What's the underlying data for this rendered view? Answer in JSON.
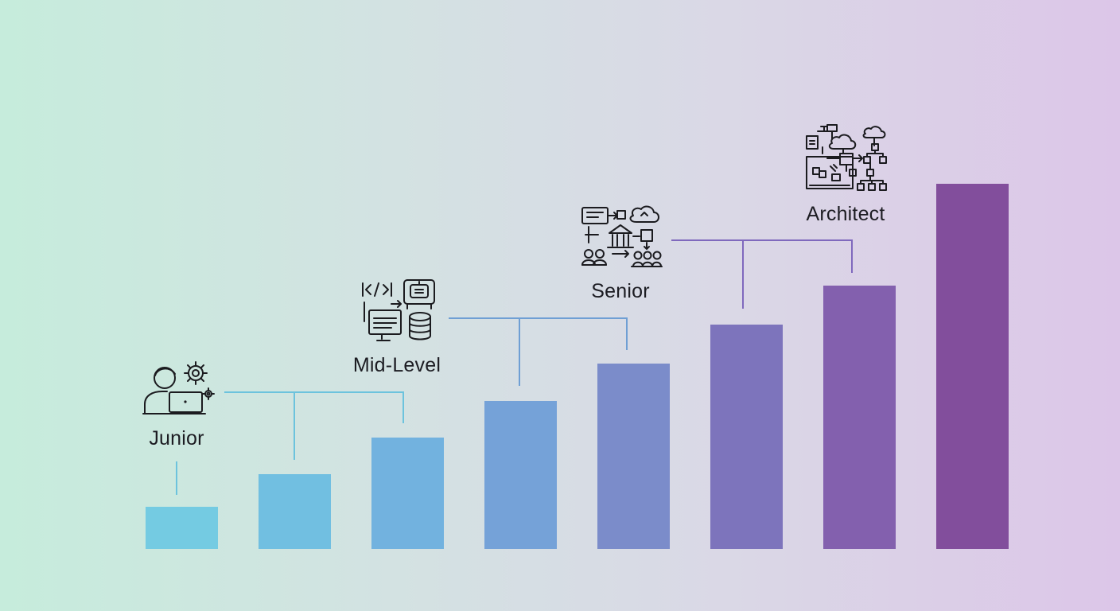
{
  "diagram": {
    "bar_levels": [
      1,
      2,
      3,
      4,
      5,
      6,
      7,
      8
    ],
    "bar_colors": [
      "#74cbe2",
      "#71bfe1",
      "#72b2df",
      "#75a2d8",
      "#7b8cca",
      "#7d74bc",
      "#8360ae",
      "#824e9c"
    ],
    "connector_colors": {
      "junior": "#6cc3dd",
      "mid": "#6f9fd4",
      "senior": "#7f69bd"
    },
    "stages": [
      {
        "id": "junior",
        "label": "Junior",
        "icon": "developer-laptop-gear-icon"
      },
      {
        "id": "mid",
        "label": "Mid-Level",
        "icon": "code-database-icon"
      },
      {
        "id": "senior",
        "label": "Senior",
        "icon": "system-design-team-icon"
      },
      {
        "id": "architect",
        "label": "Architect",
        "icon": "cloud-architecture-icon"
      }
    ]
  }
}
